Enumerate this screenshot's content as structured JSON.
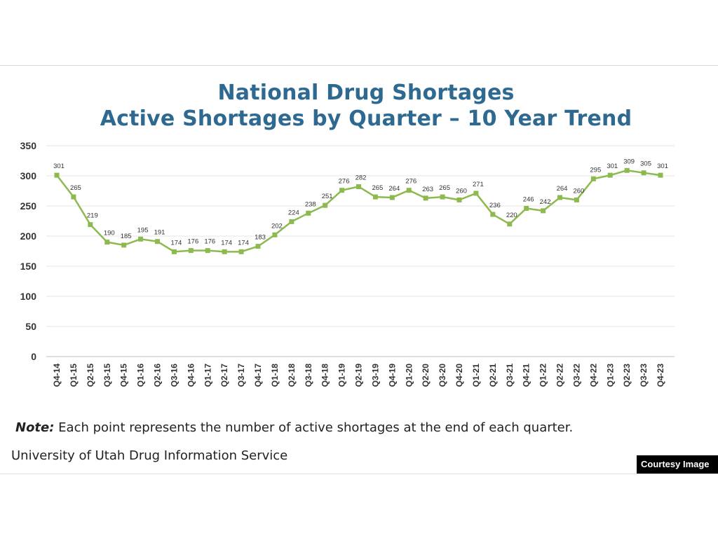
{
  "chart_data": {
    "type": "line",
    "title": "National Drug Shortages",
    "subtitle": "Active Shortages by Quarter – 10 Year Trend",
    "xlabel": "",
    "ylabel": "",
    "categories": [
      "Q4-14",
      "Q1-15",
      "Q2-15",
      "Q3-15",
      "Q4-15",
      "Q1-16",
      "Q2-16",
      "Q3-16",
      "Q4-16",
      "Q1-17",
      "Q2-17",
      "Q3-17",
      "Q4-17",
      "Q1-18",
      "Q2-18",
      "Q3-18",
      "Q4-18",
      "Q1-19",
      "Q2-19",
      "Q3-19",
      "Q4-19",
      "Q1-20",
      "Q2-20",
      "Q3-20",
      "Q4-20",
      "Q1-21",
      "Q2-21",
      "Q3-21",
      "Q4-21",
      "Q1-22",
      "Q2-22",
      "Q3-22",
      "Q4-22",
      "Q1-23",
      "Q2-23",
      "Q3-23",
      "Q4-23"
    ],
    "values": [
      301,
      265,
      219,
      190,
      185,
      195,
      191,
      174,
      176,
      176,
      174,
      174,
      183,
      202,
      224,
      238,
      251,
      276,
      282,
      265,
      264,
      276,
      263,
      265,
      260,
      271,
      236,
      220,
      246,
      242,
      264,
      260,
      295,
      301,
      309,
      305,
      301
    ],
    "ylim": [
      0,
      350
    ],
    "yticks": [
      0,
      50,
      100,
      150,
      200,
      250,
      300,
      350
    ],
    "grid": true,
    "legend": "none",
    "line_color": "#8dba4f",
    "grid_color": "#e6e6e6"
  },
  "note": {
    "label": "Note:",
    "text": " Each point represents the number of active shortages at the end of each quarter."
  },
  "source": "University of Utah Drug Information Service",
  "badge": "Courtesy Image"
}
